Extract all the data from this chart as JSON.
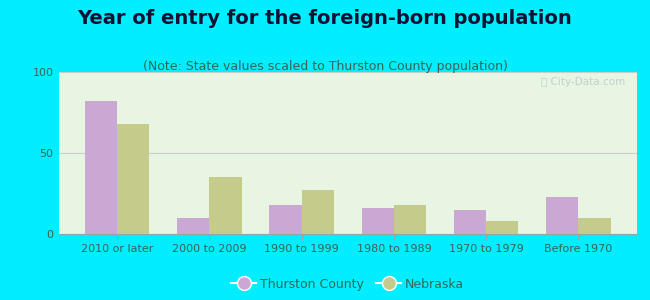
{
  "title": "Year of entry for the foreign-born population",
  "subtitle": "(Note: State values scaled to Thurston County population)",
  "categories": [
    "2010 or later",
    "2000 to 2009",
    "1990 to 1999",
    "1980 to 1989",
    "1970 to 1979",
    "Before 1970"
  ],
  "thurston_county": [
    82,
    10,
    18,
    16,
    15,
    23
  ],
  "nebraska": [
    68,
    35,
    27,
    18,
    8,
    10
  ],
  "thurston_color": "#c9a8d4",
  "nebraska_color": "#c5cb8a",
  "background_outer": "#00eeff",
  "background_inner_top": "#e8f5e8",
  "background_inner_bottom": "#d8edd8",
  "ylim": [
    0,
    100
  ],
  "yticks": [
    0,
    50,
    100
  ],
  "bar_width": 0.35,
  "legend_labels": [
    "Thurston County",
    "Nebraska"
  ],
  "grid_color": "#cccccc",
  "title_fontsize": 14,
  "subtitle_fontsize": 9,
  "tick_fontsize": 8,
  "legend_fontsize": 9,
  "title_color": "#111133",
  "subtitle_color": "#336655",
  "tick_color": "#336655",
  "watermark_color": "#bbcccc"
}
